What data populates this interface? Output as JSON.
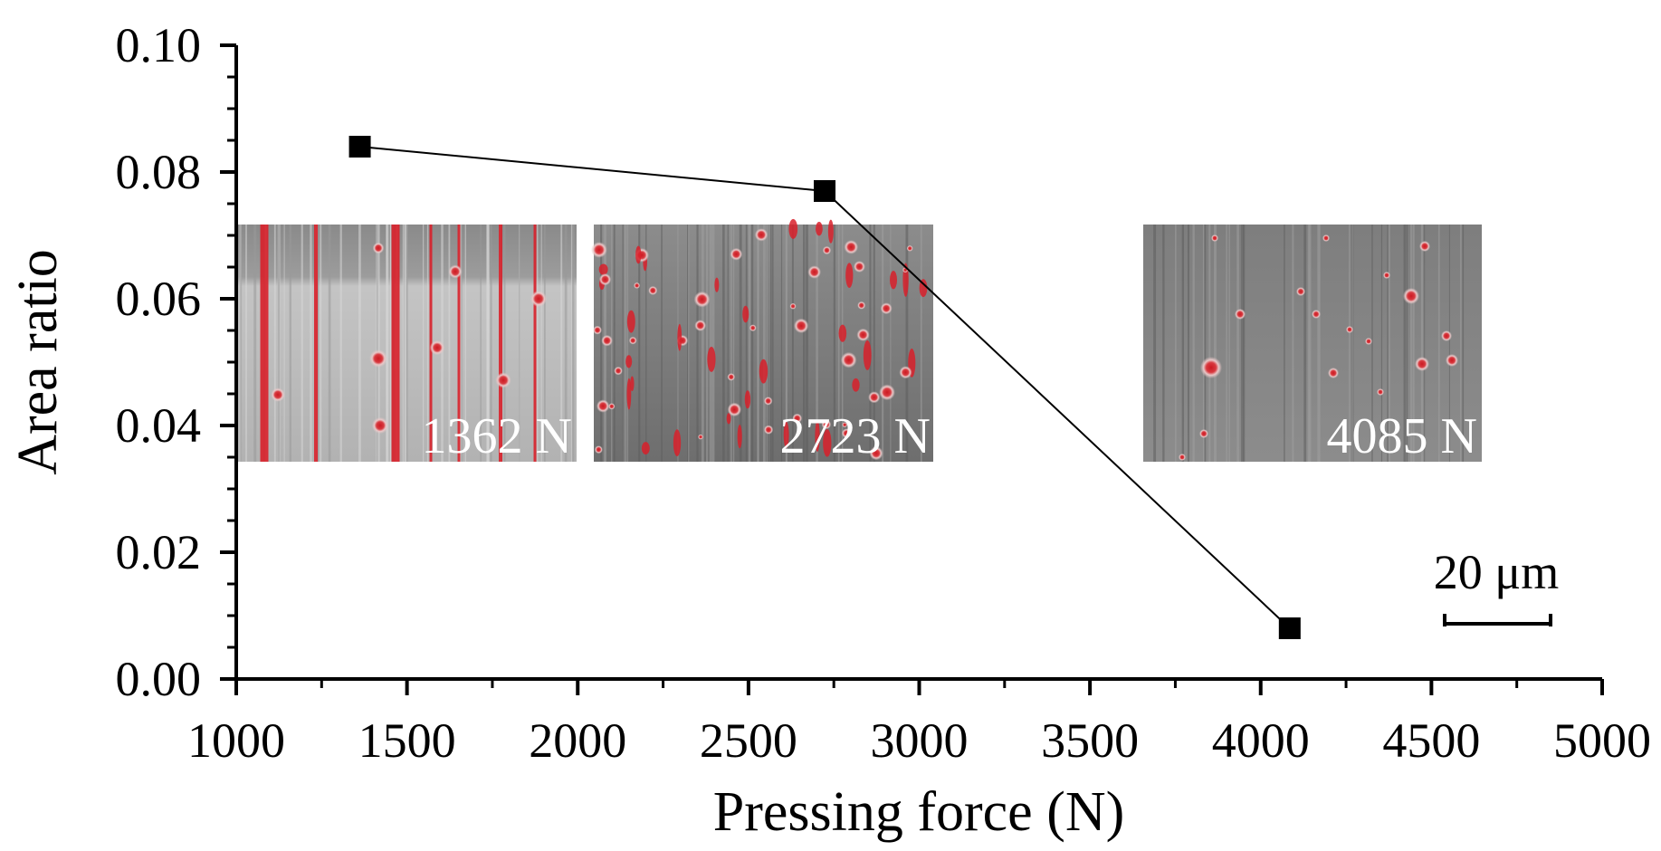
{
  "chart_data": {
    "type": "line",
    "xlabel": "Pressing force (N)",
    "ylabel": "Area ratio",
    "xlim": [
      1000,
      5000
    ],
    "ylim": [
      0.0,
      0.1
    ],
    "x_ticks": [
      "1000",
      "1500",
      "2000",
      "2500",
      "3000",
      "3500",
      "4000",
      "4500",
      "5000"
    ],
    "y_ticks": [
      "0.00",
      "0.02",
      "0.04",
      "0.06",
      "0.08",
      "0.10"
    ],
    "grid": false,
    "series": [
      {
        "marker": "square",
        "color": "#000000",
        "x": [
          1362,
          2723,
          4085
        ],
        "y": [
          0.084,
          0.077,
          0.008
        ]
      }
    ],
    "insets": [
      {
        "label": "1362 N",
        "style": "dense-streaks"
      },
      {
        "label": "2723 N",
        "style": "medium-spots"
      },
      {
        "label": "4085 N",
        "style": "sparse-spots"
      }
    ],
    "scale_bar": {
      "label": "20 μm"
    }
  }
}
